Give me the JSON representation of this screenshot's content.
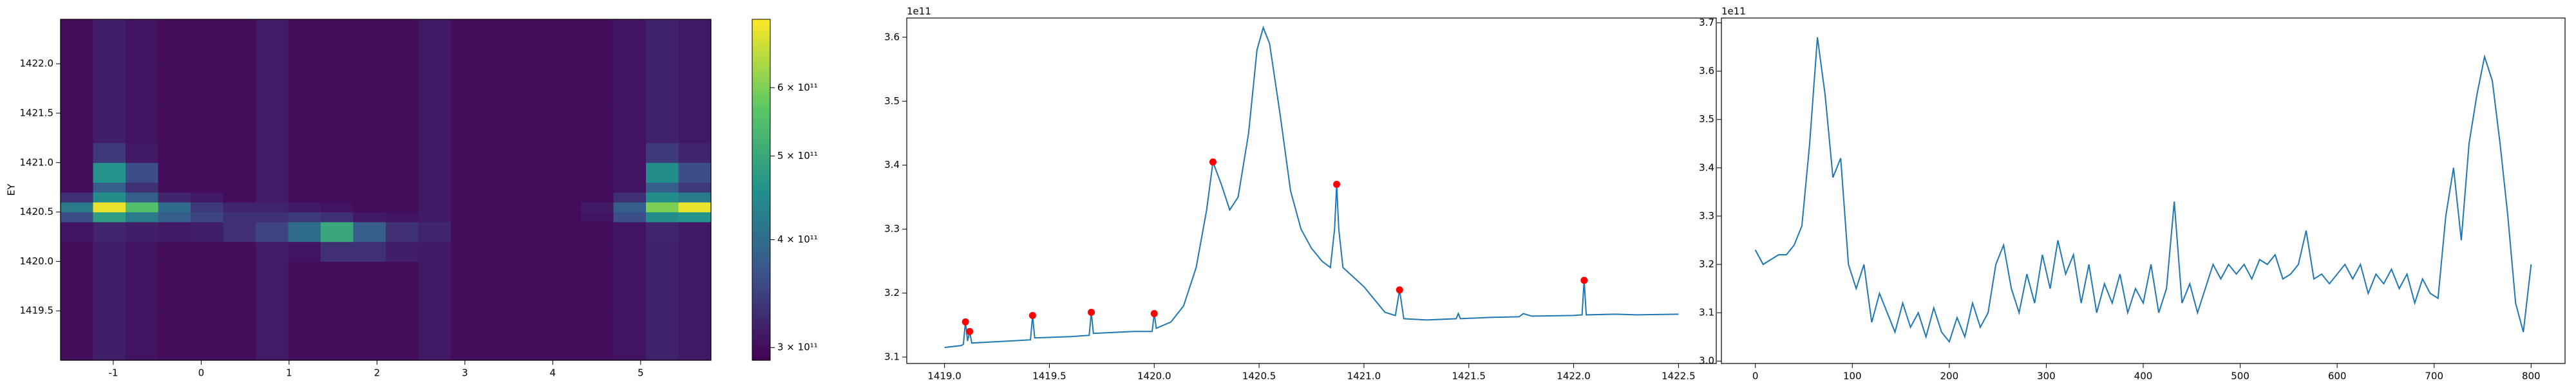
{
  "chart_data": [
    {
      "type": "heatmap",
      "ylabel": "EY",
      "scale": "log",
      "x_edges": [
        -1.6,
        -1.23,
        -0.86,
        -0.49,
        -0.12,
        0.25,
        0.62,
        0.99,
        1.36,
        1.73,
        2.1,
        2.47,
        2.84,
        3.21,
        3.58,
        3.95,
        4.32,
        4.69,
        5.06,
        5.43,
        5.8
      ],
      "y_edges": [
        1419.0,
        1419.5,
        1420.0,
        1420.2,
        1420.4,
        1420.5,
        1420.6,
        1420.7,
        1420.8,
        1421.0,
        1421.2,
        1421.6,
        1422.0,
        1422.45
      ],
      "z": [
        [
          300000000000.0,
          315000000000.0,
          305000000000.0,
          300000000000.0,
          300000000000.0,
          300000000000.0,
          312000000000.0,
          300000000000.0,
          300000000000.0,
          300000000000.0,
          300000000000.0,
          310000000000.0,
          300000000000.0,
          300000000000.0,
          300000000000.0,
          300000000000.0,
          300000000000.0,
          305000000000.0,
          318000000000.0,
          310000000000.0
        ],
        [
          300000000000.0,
          315000000000.0,
          305000000000.0,
          300000000000.0,
          300000000000.0,
          300000000000.0,
          312000000000.0,
          300000000000.0,
          300000000000.0,
          300000000000.0,
          300000000000.0,
          310000000000.0,
          300000000000.0,
          300000000000.0,
          300000000000.0,
          300000000000.0,
          300000000000.0,
          305000000000.0,
          318000000000.0,
          310000000000.0
        ],
        [
          300000000000.0,
          315000000000.0,
          305000000000.0,
          300000000000.0,
          300000000000.0,
          300000000000.0,
          312000000000.0,
          305000000000.0,
          330000000000.0,
          330000000000.0,
          315000000000.0,
          310000000000.0,
          300000000000.0,
          300000000000.0,
          300000000000.0,
          300000000000.0,
          300000000000.0,
          305000000000.0,
          318000000000.0,
          310000000000.0
        ],
        [
          305000000000.0,
          320000000000.0,
          315000000000.0,
          310000000000.0,
          315000000000.0,
          330000000000.0,
          350000000000.0,
          400000000000.0,
          500000000000.0,
          380000000000.0,
          330000000000.0,
          320000000000.0,
          300000000000.0,
          300000000000.0,
          300000000000.0,
          300000000000.0,
          300000000000.0,
          305000000000.0,
          320000000000.0,
          310000000000.0
        ],
        [
          360000000000.0,
          480000000000.0,
          420000000000.0,
          380000000000.0,
          350000000000.0,
          330000000000.0,
          330000000000.0,
          340000000000.0,
          330000000000.0,
          310000000000.0,
          305000000000.0,
          310000000000.0,
          300000000000.0,
          300000000000.0,
          300000000000.0,
          300000000000.0,
          305000000000.0,
          360000000000.0,
          450000000000.0,
          460000000000.0
        ],
        [
          420000000000.0,
          700000000000.0,
          550000000000.0,
          400000000000.0,
          340000000000.0,
          320000000000.0,
          320000000000.0,
          310000000000.0,
          305000000000.0,
          300000000000.0,
          300000000000.0,
          310000000000.0,
          300000000000.0,
          300000000000.0,
          300000000000.0,
          300000000000.0,
          310000000000.0,
          380000000000.0,
          600000000000.0,
          700000000000.0
        ],
        [
          330000000000.0,
          450000000000.0,
          380000000000.0,
          320000000000.0,
          310000000000.0,
          300000000000.0,
          312000000000.0,
          300000000000.0,
          300000000000.0,
          300000000000.0,
          300000000000.0,
          310000000000.0,
          300000000000.0,
          300000000000.0,
          300000000000.0,
          300000000000.0,
          300000000000.0,
          330000000000.0,
          450000000000.0,
          420000000000.0
        ],
        [
          300000000000.0,
          380000000000.0,
          330000000000.0,
          300000000000.0,
          300000000000.0,
          300000000000.0,
          312000000000.0,
          300000000000.0,
          300000000000.0,
          300000000000.0,
          300000000000.0,
          310000000000.0,
          300000000000.0,
          300000000000.0,
          300000000000.0,
          300000000000.0,
          300000000000.0,
          305000000000.0,
          380000000000.0,
          340000000000.0
        ],
        [
          300000000000.0,
          460000000000.0,
          360000000000.0,
          300000000000.0,
          300000000000.0,
          300000000000.0,
          312000000000.0,
          300000000000.0,
          300000000000.0,
          300000000000.0,
          300000000000.0,
          310000000000.0,
          300000000000.0,
          300000000000.0,
          300000000000.0,
          300000000000.0,
          300000000000.0,
          305000000000.0,
          450000000000.0,
          360000000000.0
        ],
        [
          300000000000.0,
          340000000000.0,
          310000000000.0,
          300000000000.0,
          300000000000.0,
          300000000000.0,
          312000000000.0,
          300000000000.0,
          300000000000.0,
          300000000000.0,
          300000000000.0,
          310000000000.0,
          300000000000.0,
          300000000000.0,
          300000000000.0,
          300000000000.0,
          300000000000.0,
          305000000000.0,
          340000000000.0,
          320000000000.0
        ],
        [
          300000000000.0,
          315000000000.0,
          305000000000.0,
          300000000000.0,
          300000000000.0,
          300000000000.0,
          312000000000.0,
          300000000000.0,
          300000000000.0,
          300000000000.0,
          300000000000.0,
          310000000000.0,
          300000000000.0,
          300000000000.0,
          300000000000.0,
          300000000000.0,
          300000000000.0,
          305000000000.0,
          318000000000.0,
          310000000000.0
        ],
        [
          300000000000.0,
          315000000000.0,
          305000000000.0,
          300000000000.0,
          300000000000.0,
          300000000000.0,
          312000000000.0,
          300000000000.0,
          300000000000.0,
          300000000000.0,
          300000000000.0,
          310000000000.0,
          300000000000.0,
          300000000000.0,
          300000000000.0,
          300000000000.0,
          300000000000.0,
          305000000000.0,
          318000000000.0,
          310000000000.0
        ],
        [
          300000000000.0,
          315000000000.0,
          305000000000.0,
          300000000000.0,
          300000000000.0,
          300000000000.0,
          312000000000.0,
          300000000000.0,
          300000000000.0,
          300000000000.0,
          300000000000.0,
          310000000000.0,
          300000000000.0,
          300000000000.0,
          300000000000.0,
          300000000000.0,
          300000000000.0,
          305000000000.0,
          318000000000.0,
          310000000000.0
        ]
      ],
      "xlim": [
        -1.6,
        5.8
      ],
      "ylim": [
        1419.0,
        1422.45
      ],
      "xticks": [
        -1,
        0,
        1,
        2,
        3,
        4,
        5
      ],
      "yticks": [
        {
          "value": 1419.5,
          "label": "1419.5"
        },
        {
          "value": 1420.0,
          "label": "1420.0"
        },
        {
          "value": 1420.5,
          "label": "1420.5"
        },
        {
          "value": 1421.0,
          "label": "1421.0"
        },
        {
          "value": 1421.5,
          "label": "1421.5"
        },
        {
          "value": 1422.0,
          "label": "1422.0"
        }
      ],
      "clim": [
        290000000000.0,
        720000000000.0
      ],
      "cticks": [
        {
          "value": 300000000000.0,
          "label": "3 × 10¹¹"
        },
        {
          "value": 400000000000.0,
          "label": "4 × 10¹¹"
        },
        {
          "value": 500000000000.0,
          "label": "5 × 10¹¹"
        },
        {
          "value": 600000000000.0,
          "label": "6 × 10¹¹"
        }
      ]
    },
    {
      "type": "line",
      "offset_text": "1e11",
      "series": [
        {
          "color": "#1f77b4",
          "x": [
            1419.0,
            1419.08,
            1419.09,
            1419.1,
            1419.11,
            1419.12,
            1419.13,
            1419.3,
            1419.41,
            1419.42,
            1419.43,
            1419.6,
            1419.69,
            1419.7,
            1419.71,
            1419.9,
            1419.99,
            1420.0,
            1420.01,
            1420.08,
            1420.14,
            1420.2,
            1420.25,
            1420.28,
            1420.32,
            1420.36,
            1420.4,
            1420.45,
            1420.49,
            1420.52,
            1420.55,
            1420.6,
            1420.65,
            1420.7,
            1420.75,
            1420.8,
            1420.84,
            1420.86,
            1420.87,
            1420.88,
            1420.9,
            1420.95,
            1421.0,
            1421.05,
            1421.1,
            1421.15,
            1421.17,
            1421.19,
            1421.3,
            1421.44,
            1421.45,
            1421.46,
            1421.6,
            1421.74,
            1421.76,
            1421.8,
            1422.0,
            1422.04,
            1422.05,
            1422.06,
            1422.2,
            1422.3,
            1422.5
          ],
          "values": [
            3.115,
            3.118,
            3.12,
            3.155,
            3.125,
            3.14,
            3.122,
            3.125,
            3.127,
            3.165,
            3.13,
            3.132,
            3.134,
            3.17,
            3.137,
            3.14,
            3.14,
            3.168,
            3.145,
            3.155,
            3.18,
            3.24,
            3.33,
            3.405,
            3.37,
            3.33,
            3.35,
            3.45,
            3.58,
            3.615,
            3.59,
            3.48,
            3.36,
            3.3,
            3.27,
            3.25,
            3.24,
            3.3,
            3.37,
            3.3,
            3.24,
            3.225,
            3.21,
            3.19,
            3.17,
            3.165,
            3.205,
            3.16,
            3.158,
            3.16,
            3.168,
            3.16,
            3.162,
            3.163,
            3.168,
            3.164,
            3.165,
            3.166,
            3.22,
            3.166,
            3.167,
            3.166,
            3.167
          ]
        }
      ],
      "peaks": {
        "color": "red",
        "x": [
          1419.1,
          1419.12,
          1419.42,
          1419.7,
          1420.0,
          1420.28,
          1420.87,
          1421.17,
          1422.05
        ],
        "values": [
          3.155,
          3.14,
          3.165,
          3.17,
          3.168,
          3.405,
          3.37,
          3.205,
          3.22
        ]
      },
      "xlim": [
        1418.82,
        1422.68
      ],
      "ylim": [
        3.09,
        3.63
      ],
      "xticks": [
        {
          "value": 1419.0,
          "label": "1419.0"
        },
        {
          "value": 1419.5,
          "label": "1419.5"
        },
        {
          "value": 1420.0,
          "label": "1420.0"
        },
        {
          "value": 1420.5,
          "label": "1420.5"
        },
        {
          "value": 1421.0,
          "label": "1421.0"
        },
        {
          "value": 1421.5,
          "label": "1421.5"
        },
        {
          "value": 1422.0,
          "label": "1422.0"
        },
        {
          "value": 1422.5,
          "label": "1422.5"
        }
      ],
      "yticks": [
        3.1,
        3.2,
        3.3,
        3.4,
        3.5,
        3.6
      ]
    },
    {
      "type": "line",
      "offset_text": "1e11",
      "series": [
        {
          "color": "#1f77b4",
          "x": [
            0,
            8,
            16,
            24,
            32,
            40,
            48,
            56,
            64,
            72,
            80,
            88,
            96,
            104,
            112,
            120,
            128,
            136,
            144,
            152,
            160,
            168,
            176,
            184,
            192,
            200,
            208,
            216,
            224,
            232,
            240,
            248,
            256,
            264,
            272,
            280,
            288,
            296,
            304,
            312,
            320,
            328,
            336,
            344,
            352,
            360,
            368,
            376,
            384,
            392,
            400,
            408,
            416,
            424,
            432,
            440,
            448,
            456,
            464,
            472,
            480,
            488,
            496,
            504,
            512,
            520,
            528,
            536,
            544,
            552,
            560,
            568,
            576,
            584,
            592,
            600,
            608,
            616,
            624,
            632,
            640,
            648,
            656,
            664,
            672,
            680,
            688,
            696,
            704,
            712,
            720,
            728,
            736,
            744,
            752,
            760,
            768,
            776,
            784,
            792,
            800
          ],
          "values": [
            3.23,
            3.2,
            3.21,
            3.22,
            3.22,
            3.24,
            3.28,
            3.45,
            3.67,
            3.55,
            3.38,
            3.42,
            3.2,
            3.15,
            3.2,
            3.08,
            3.14,
            3.1,
            3.06,
            3.12,
            3.07,
            3.1,
            3.05,
            3.11,
            3.06,
            3.04,
            3.09,
            3.05,
            3.12,
            3.07,
            3.1,
            3.2,
            3.24,
            3.15,
            3.1,
            3.18,
            3.12,
            3.22,
            3.15,
            3.25,
            3.18,
            3.22,
            3.12,
            3.2,
            3.1,
            3.16,
            3.12,
            3.18,
            3.1,
            3.15,
            3.12,
            3.2,
            3.1,
            3.15,
            3.33,
            3.12,
            3.16,
            3.1,
            3.15,
            3.2,
            3.17,
            3.2,
            3.18,
            3.2,
            3.17,
            3.21,
            3.2,
            3.22,
            3.17,
            3.18,
            3.2,
            3.27,
            3.17,
            3.18,
            3.16,
            3.18,
            3.2,
            3.17,
            3.2,
            3.14,
            3.18,
            3.16,
            3.19,
            3.15,
            3.18,
            3.12,
            3.17,
            3.14,
            3.13,
            3.3,
            3.4,
            3.25,
            3.45,
            3.55,
            3.63,
            3.58,
            3.45,
            3.3,
            3.12,
            3.06,
            3.2
          ]
        }
      ],
      "xlim": [
        -35,
        835
      ],
      "ylim": [
        2.995,
        3.71
      ],
      "xticks": [
        0,
        100,
        200,
        300,
        400,
        500,
        600,
        700,
        800
      ],
      "yticks": [
        {
          "value": 3.0,
          "label": "3.0"
        },
        3.1,
        3.2,
        3.3,
        3.4,
        3.5,
        3.6,
        3.7
      ]
    }
  ]
}
